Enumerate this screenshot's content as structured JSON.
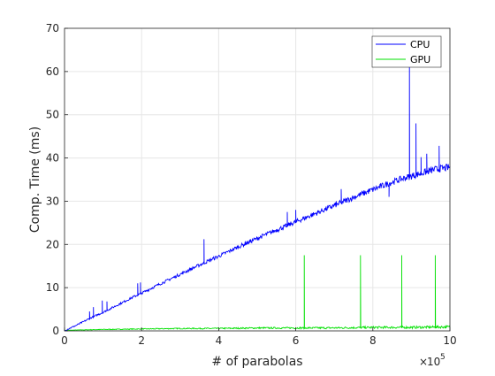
{
  "chart_data": {
    "type": "line",
    "title": "",
    "xlabel": "# of parabolas",
    "ylabel": "Comp. Time (ms)",
    "x_exponent_base": "10",
    "x_exponent_power": "5",
    "xlim": [
      0,
      10
    ],
    "ylim": [
      0,
      70
    ],
    "x_ticks": [
      {
        "value": 0,
        "label": "0"
      },
      {
        "value": 2,
        "label": "2"
      },
      {
        "value": 4,
        "label": "4"
      },
      {
        "value": 6,
        "label": "6"
      },
      {
        "value": 8,
        "label": "8"
      },
      {
        "value": 10,
        "label": "10"
      }
    ],
    "y_ticks": [
      {
        "value": 0,
        "label": "0"
      },
      {
        "value": 10,
        "label": "10"
      },
      {
        "value": 20,
        "label": "20"
      },
      {
        "value": 30,
        "label": "30"
      },
      {
        "value": 40,
        "label": "40"
      },
      {
        "value": 50,
        "label": "50"
      },
      {
        "value": 60,
        "label": "60"
      },
      {
        "value": 70,
        "label": "70"
      }
    ],
    "grid": true,
    "legend_position": "top-right",
    "series": [
      {
        "name": "CPU",
        "color": "#0000ff",
        "x": [
          0,
          0.3,
          0.7,
          1.0,
          1.4,
          1.8,
          2.0,
          2.4,
          2.8,
          3.2,
          3.6,
          4.0,
          4.4,
          4.8,
          5.2,
          5.6,
          6.0,
          6.4,
          6.8,
          7.2,
          7.6,
          8.0,
          8.4,
          8.8,
          9.2,
          9.6,
          10.0
        ],
        "values": [
          0,
          1.2,
          3.0,
          4.2,
          6.0,
          7.8,
          8.6,
          10.4,
          12.1,
          13.8,
          15.5,
          17.1,
          18.8,
          20.4,
          22.0,
          23.5,
          25.0,
          26.5,
          28.0,
          29.5,
          31.0,
          32.4,
          33.8,
          35.0,
          36.0,
          37.0,
          37.5
        ]
      },
      {
        "name": "GPU",
        "color": "#00e000",
        "x": [
          0,
          1,
          2,
          3,
          4,
          5,
          6,
          7,
          8,
          9,
          10
        ],
        "values": [
          0.1,
          0.3,
          0.4,
          0.5,
          0.5,
          0.6,
          0.6,
          0.6,
          0.7,
          0.7,
          0.8
        ]
      }
    ],
    "spikes": {
      "CPU": [
        {
          "x": 0.65,
          "y": 4.5
        },
        {
          "x": 0.75,
          "y": 5.5
        },
        {
          "x": 0.98,
          "y": 7.0
        },
        {
          "x": 1.1,
          "y": 6.8
        },
        {
          "x": 1.9,
          "y": 11.0
        },
        {
          "x": 1.97,
          "y": 11.2
        },
        {
          "x": 3.62,
          "y": 21.2
        },
        {
          "x": 4.7,
          "y": 20.8
        },
        {
          "x": 5.55,
          "y": 22.8
        },
        {
          "x": 5.75,
          "y": 24.4
        },
        {
          "x": 5.78,
          "y": 27.5
        },
        {
          "x": 6.0,
          "y": 28.0
        },
        {
          "x": 6.55,
          "y": 27.2
        },
        {
          "x": 7.05,
          "y": 30.0
        },
        {
          "x": 7.18,
          "y": 32.8
        },
        {
          "x": 8.42,
          "y": 31.0
        },
        {
          "x": 8.55,
          "y": 34.0
        },
        {
          "x": 8.95,
          "y": 61.0
        },
        {
          "x": 9.12,
          "y": 48.0
        },
        {
          "x": 9.25,
          "y": 40.2
        },
        {
          "x": 9.4,
          "y": 41.0
        },
        {
          "x": 9.72,
          "y": 42.8
        }
      ],
      "GPU": [
        {
          "x": 6.22,
          "y": 17.5
        },
        {
          "x": 7.68,
          "y": 17.5
        },
        {
          "x": 8.75,
          "y": 17.5
        },
        {
          "x": 9.62,
          "y": 17.5
        }
      ]
    }
  }
}
